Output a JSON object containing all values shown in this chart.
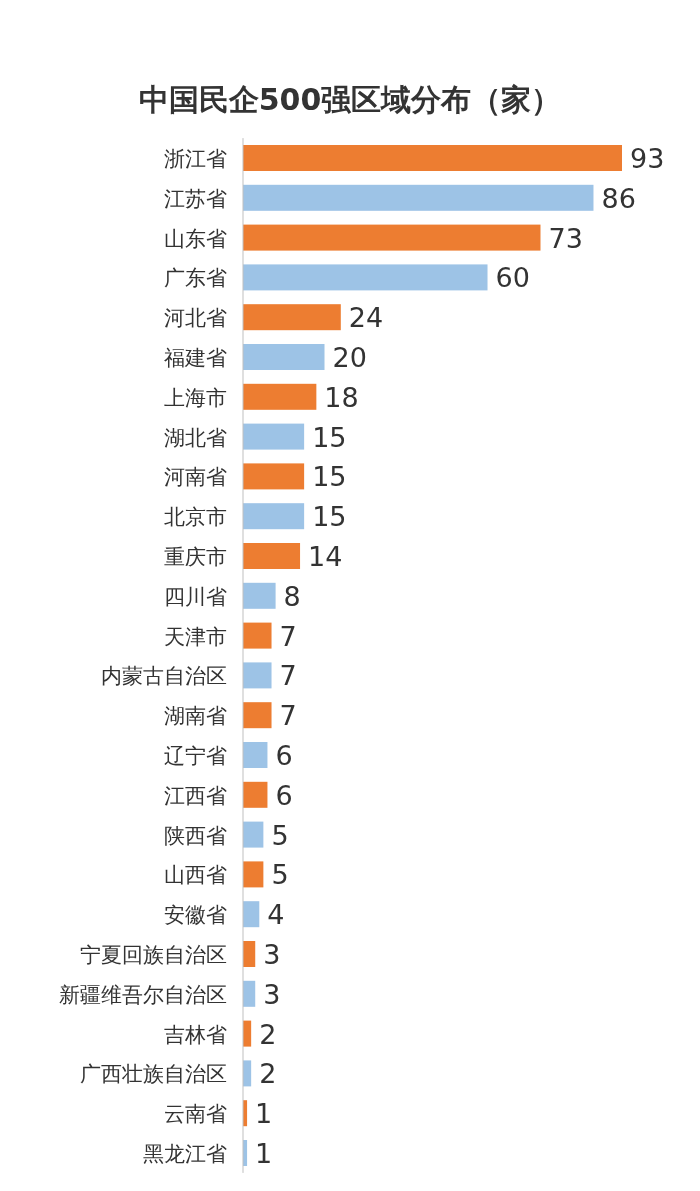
{
  "chart_data": {
    "type": "bar",
    "orientation": "horizontal",
    "title": "中国民企500强区域分布（家）",
    "categories": [
      "浙江省",
      "江苏省",
      "山东省",
      "广东省",
      "河北省",
      "福建省",
      "上海市",
      "湖北省",
      "河南省",
      "北京市",
      "重庆市",
      "四川省",
      "天津市",
      "内蒙古自治区",
      "湖南省",
      "辽宁省",
      "江西省",
      "陕西省",
      "山西省",
      "安徽省",
      "宁夏回族自治区",
      "新疆维吾尔自治区",
      "吉林省",
      "广西壮族自治区",
      "云南省",
      "黑龙江省"
    ],
    "values": [
      93,
      86,
      73,
      60,
      24,
      20,
      18,
      15,
      15,
      15,
      14,
      8,
      7,
      7,
      7,
      6,
      6,
      5,
      5,
      4,
      3,
      3,
      2,
      2,
      1,
      1
    ],
    "colors": [
      "#ed7d31",
      "#9dc3e6",
      "#ed7d31",
      "#9dc3e6",
      "#ed7d31",
      "#9dc3e6",
      "#ed7d31",
      "#9dc3e6",
      "#ed7d31",
      "#9dc3e6",
      "#ed7d31",
      "#9dc3e6",
      "#ed7d31",
      "#9dc3e6",
      "#ed7d31",
      "#9dc3e6",
      "#ed7d31",
      "#9dc3e6",
      "#ed7d31",
      "#9dc3e6",
      "#ed7d31",
      "#9dc3e6",
      "#ed7d31",
      "#9dc3e6",
      "#ed7d31",
      "#9dc3e6"
    ],
    "data_labels": true
  }
}
